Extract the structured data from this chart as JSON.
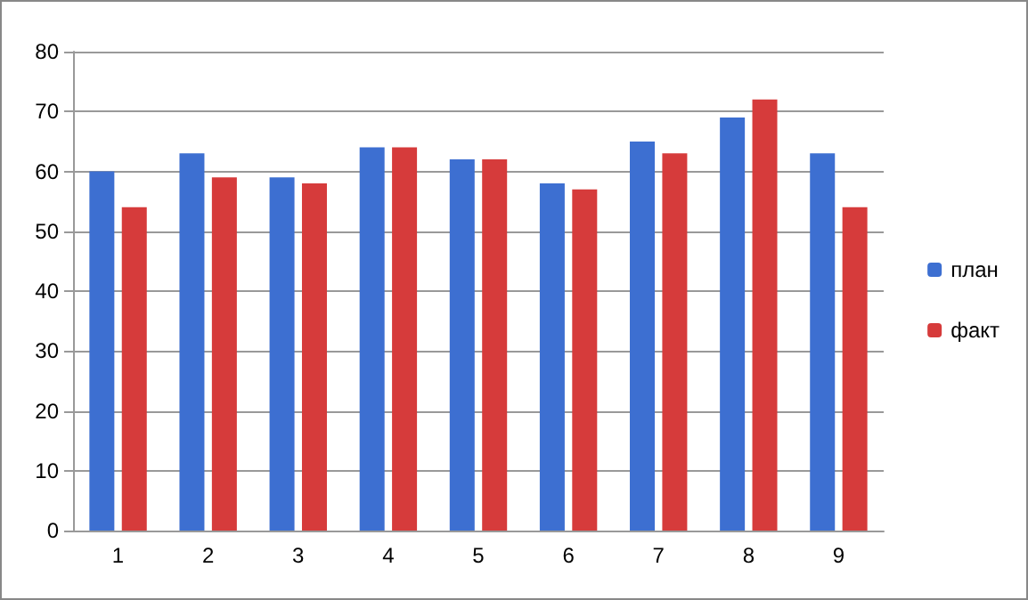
{
  "chart_data": {
    "type": "bar",
    "categories": [
      "1",
      "2",
      "3",
      "4",
      "5",
      "6",
      "7",
      "8",
      "9"
    ],
    "series": [
      {
        "name": "план",
        "color": "#3d6fd1",
        "values": [
          60,
          63,
          59,
          64,
          62,
          58,
          65,
          69,
          63
        ]
      },
      {
        "name": "факт",
        "color": "#d63b3b",
        "values": [
          54,
          59,
          58,
          64,
          62,
          57,
          63,
          72,
          54
        ]
      }
    ],
    "ylim": [
      0,
      80
    ],
    "yticks": [
      0,
      10,
      20,
      30,
      40,
      50,
      60,
      70,
      80
    ],
    "grid": "y",
    "legend": "right"
  }
}
